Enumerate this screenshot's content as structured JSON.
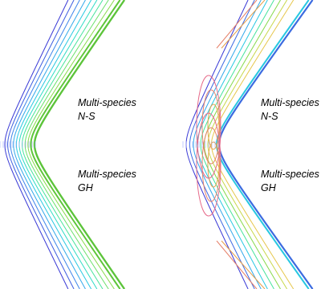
{
  "left_panel": {
    "top_label_line1": "Multi-species",
    "top_label_line2": "N-S",
    "bottom_label_line1": "Multi-species",
    "bottom_label_line2": "GH"
  },
  "right_panel": {
    "top_label_line1": "Multi-species",
    "top_label_line2": "N-S",
    "bottom_label_line1": "Multi-species",
    "bottom_label_line2": "GH"
  },
  "contour_colors": {
    "left": [
      "#3b3bd6",
      "#3f5fe0",
      "#3f86ea",
      "#34a9ea",
      "#29c8e2",
      "#2fdcc5",
      "#46e39b",
      "#6ae06a",
      "#86d94a",
      "#5fc63a"
    ],
    "right_outer": [
      "#3b3bd6",
      "#3f6ae2",
      "#34a9ea",
      "#29c8e2",
      "#46e39b",
      "#86d94a",
      "#c8d84a",
      "#e6c64a"
    ],
    "right_inner": [
      "#e6a04a",
      "#e6826a",
      "#e66a8a"
    ]
  }
}
